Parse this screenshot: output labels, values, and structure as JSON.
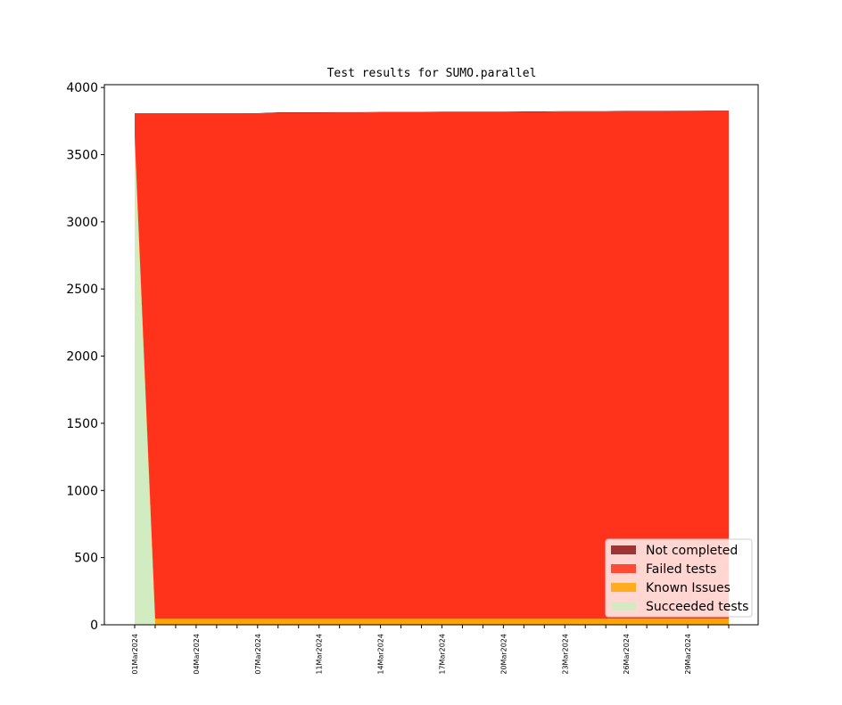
{
  "chart_data": {
    "type": "stacked_area",
    "title": "Test results for SUMO.parallel",
    "categories": [
      "01Mar2024",
      null,
      null,
      "04Mar2024",
      null,
      null,
      "07Mar2024",
      null,
      null,
      "11Mar2024",
      null,
      null,
      "14Mar2024",
      null,
      null,
      "17Mar2024",
      null,
      null,
      "20Mar2024",
      null,
      null,
      "23Mar2024",
      null,
      null,
      "26Mar2024",
      null,
      null,
      "29Mar2024",
      null,
      null
    ],
    "series": [
      {
        "name": "Succeeded tests",
        "color": "#d0ecc0",
        "values": [
          3600,
          0,
          0,
          0,
          0,
          0,
          0,
          0,
          0,
          0,
          0,
          0,
          0,
          0,
          0,
          0,
          0,
          0,
          0,
          0,
          0,
          0,
          0,
          0,
          0,
          0,
          0,
          0,
          0,
          0
        ]
      },
      {
        "name": "Known Issues",
        "color": "#ffa500",
        "values": [
          40,
          45,
          45,
          45,
          45,
          45,
          45,
          45,
          45,
          45,
          45,
          45,
          45,
          45,
          45,
          45,
          45,
          45,
          45,
          45,
          45,
          45,
          45,
          45,
          45,
          45,
          45,
          45,
          45,
          45
        ]
      },
      {
        "name": "Failed tests",
        "color": "#ff321b",
        "values": [
          165,
          3760,
          3760,
          3760,
          3760,
          3760,
          3761,
          3767,
          3767,
          3767,
          3768,
          3768,
          3770,
          3770,
          3770,
          3772,
          3772,
          3772,
          3772,
          3774,
          3774,
          3776,
          3776,
          3776,
          3778,
          3778,
          3778,
          3779,
          3780,
          3780
        ]
      },
      {
        "name": "Not completed",
        "color": "#8b1a1a",
        "values": [
          3,
          3,
          3,
          3,
          3,
          3,
          3,
          3,
          3,
          3,
          3,
          3,
          3,
          3,
          3,
          3,
          3,
          3,
          3,
          3,
          3,
          3,
          3,
          3,
          3,
          3,
          3,
          3,
          3,
          3
        ]
      }
    ],
    "ylim": [
      0,
      4021
    ],
    "yticks": [
      0,
      500,
      1000,
      1500,
      2000,
      2500,
      3000,
      3500,
      4000
    ],
    "legend": "lower right"
  }
}
